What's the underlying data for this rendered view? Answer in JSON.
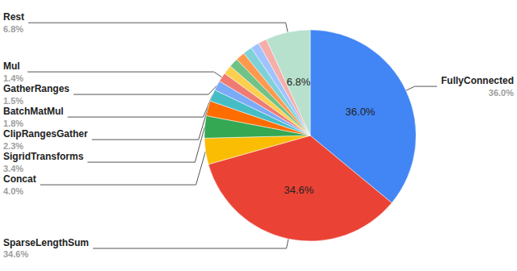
{
  "chart_data": {
    "type": "pie",
    "categories": [
      "FullyConnected",
      "SparseLengthSum",
      "Concat",
      "SigridTransforms",
      "ClipRangesGather",
      "BatchMatMul",
      "GatherRanges",
      "Mul",
      null,
      null,
      null,
      null,
      null,
      null,
      "Rest"
    ],
    "values": [
      36.0,
      34.6,
      4.0,
      3.4,
      2.3,
      1.8,
      1.5,
      1.4,
      1.4,
      1.4,
      1.4,
      1.4,
      1.3,
      1.3,
      6.8
    ],
    "value_labels": [
      "36.0%",
      "34.6%",
      "4.0%",
      "3.4%",
      "2.3%",
      "1.8%",
      "1.5%",
      "1.4%",
      null,
      null,
      null,
      null,
      null,
      null,
      "6.8%"
    ],
    "colors": [
      "#4285f4",
      "#ea4335",
      "#fbbc04",
      "#34a853",
      "#ff6d01",
      "#46bdc6",
      "#7baaf7",
      "#f07b72",
      "#fcd04f",
      "#71c287",
      "#ff994d",
      "#7ed1d7",
      "#a0c3ff",
      "#f6aea9",
      "#b7e1cd"
    ],
    "data_labels": true
  }
}
